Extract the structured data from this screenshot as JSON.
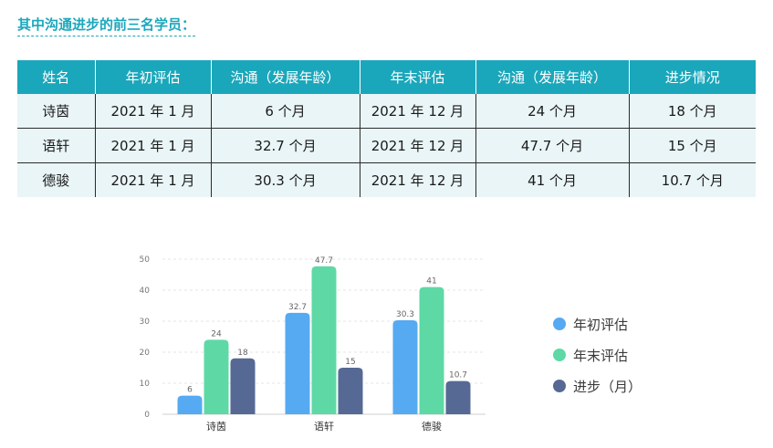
{
  "heading": "其中沟通进步的前三名学员：",
  "table": {
    "headers": [
      "姓名",
      "年初评估",
      "沟通（发展年龄）",
      "年末评估",
      "沟通（发展年龄）",
      "进步情况"
    ],
    "rows": [
      [
        "诗茵",
        "2021 年 1 月",
        "6 个月",
        "2021 年 12 月",
        "24 个月",
        "18 个月"
      ],
      [
        "语轩",
        "2021 年 1 月",
        "32.7 个月",
        "2021 年 12 月",
        "47.7 个月",
        "15 个月"
      ],
      [
        "德骏",
        "2021 年 1 月",
        "30.3 个月",
        "2021 年 12 月",
        "41 个月",
        "10.7 个月"
      ]
    ]
  },
  "chart_data": {
    "type": "bar",
    "categories": [
      "诗茵",
      "语轩",
      "德骏"
    ],
    "series": [
      {
        "name": "年初评估",
        "values": [
          6,
          32.7,
          30.3
        ],
        "labels": [
          "6",
          "32.7",
          "30.3"
        ],
        "color": "#56aaf2"
      },
      {
        "name": "年末评估",
        "values": [
          24,
          47.7,
          41
        ],
        "labels": [
          "24",
          "47.7",
          "41"
        ],
        "color": "#5ed9a6"
      },
      {
        "name": "进步（月）",
        "values": [
          18,
          15,
          10.7
        ],
        "labels": [
          "18",
          "15",
          "10.7"
        ],
        "color": "#566994"
      }
    ],
    "ylim": [
      0,
      50
    ],
    "yticks": [
      0,
      10,
      20,
      30,
      40,
      50
    ],
    "grid": true,
    "legend_position": "right"
  }
}
